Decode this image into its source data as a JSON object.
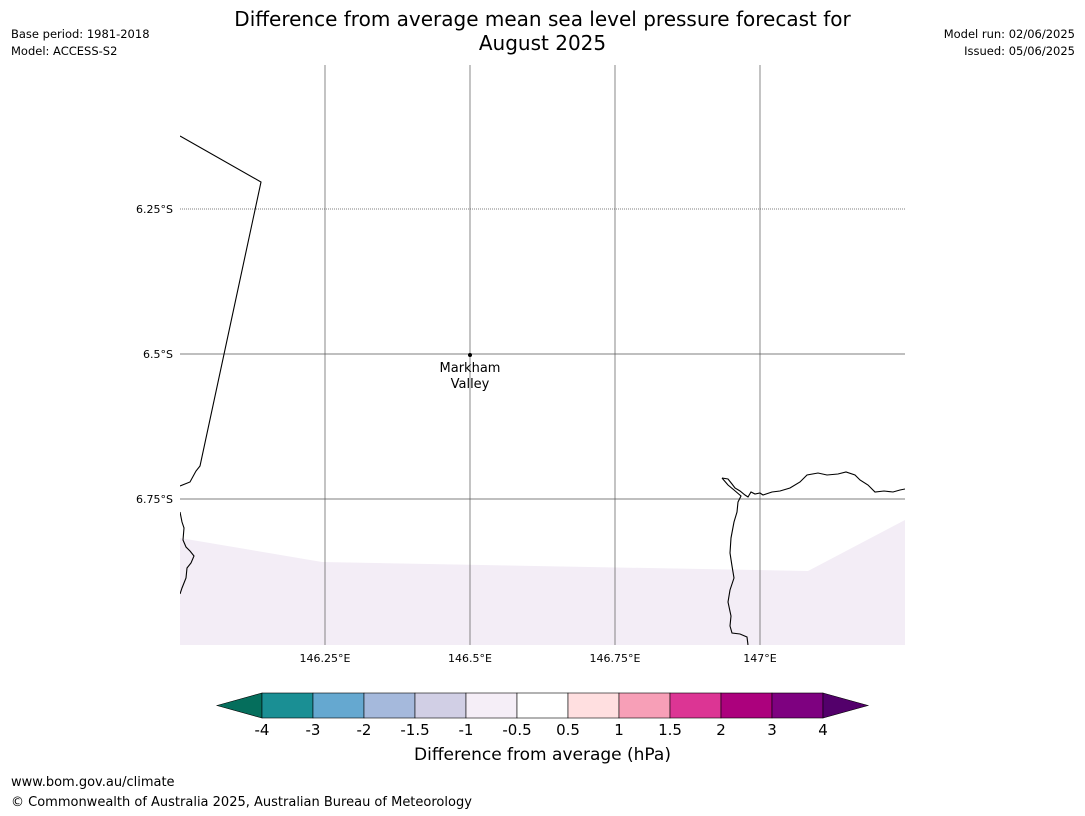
{
  "header": {
    "title_line1": "Difference from average mean sea level pressure forecast for",
    "title_line2": "August 2025",
    "base_period": "Base period: 1981-2018",
    "model": "Model: ACCESS-S2",
    "model_run": "Model run: 02/06/2025",
    "issued": "Issued: 05/06/2025"
  },
  "map": {
    "lat_labels": [
      "6.25°S",
      "6.5°S",
      "6.75°S"
    ],
    "lon_labels": [
      "146.25°E",
      "146.5°E",
      "146.75°E",
      "147°E"
    ],
    "place_label_line1": "Markham",
    "place_label_line2": "Valley",
    "anomaly_fill_color": "#f3edf6",
    "coastline_color": "#000000",
    "gridline_color": "#555555"
  },
  "colorbar": {
    "ticks": [
      "-4",
      "-3",
      "-2",
      "-1.5",
      "-1",
      "-0.5",
      "0.5",
      "1",
      "1.5",
      "2",
      "3",
      "4"
    ],
    "colors": [
      "#1a8f94",
      "#65a8d0",
      "#a5b9dc",
      "#d1cfe5",
      "#f5eef7",
      "#ffffff",
      "#ffdfe0",
      "#f79fb7",
      "#dc3594",
      "#ac017d",
      "#7e0180"
    ],
    "under_color": "#056e5c",
    "over_color": "#53006b",
    "label": "Difference from average (hPa)"
  },
  "footer": {
    "url": "www.bom.gov.au/climate",
    "copyright": "© Commonwealth of Australia 2025, Australian Bureau of Meteorology"
  }
}
